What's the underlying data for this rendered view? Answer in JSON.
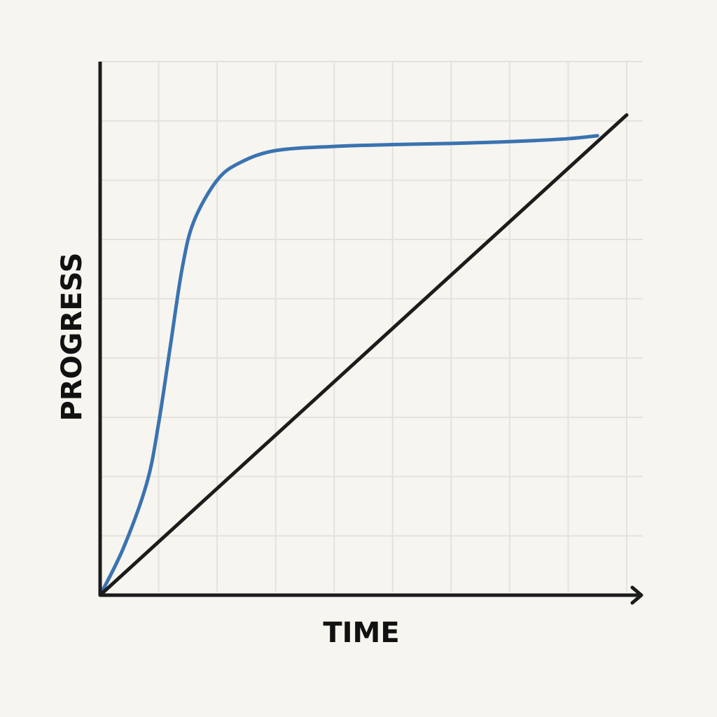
{
  "chart_data": {
    "type": "line",
    "title": "",
    "xlabel": "TIME",
    "ylabel": "PROGRESS",
    "xlim": [
      0,
      9
    ],
    "ylim": [
      0,
      9
    ],
    "grid": true,
    "ticks_labeled": false,
    "series": [
      {
        "color": "#3a73b0",
        "x": [
          0,
          0.4,
          0.8,
          1.0,
          1.2,
          1.4,
          1.6,
          2.0,
          2.4,
          3.0,
          4.0,
          5.0,
          6.0,
          7.0,
          8.0,
          8.5
        ],
        "y": [
          0,
          0.8,
          1.9,
          2.9,
          4.2,
          5.5,
          6.3,
          7.0,
          7.3,
          7.5,
          7.57,
          7.6,
          7.62,
          7.65,
          7.7,
          7.75
        ]
      },
      {
        "color": "#1c1c1c",
        "x": [
          0,
          9
        ],
        "y": [
          0,
          8.1
        ]
      }
    ]
  }
}
